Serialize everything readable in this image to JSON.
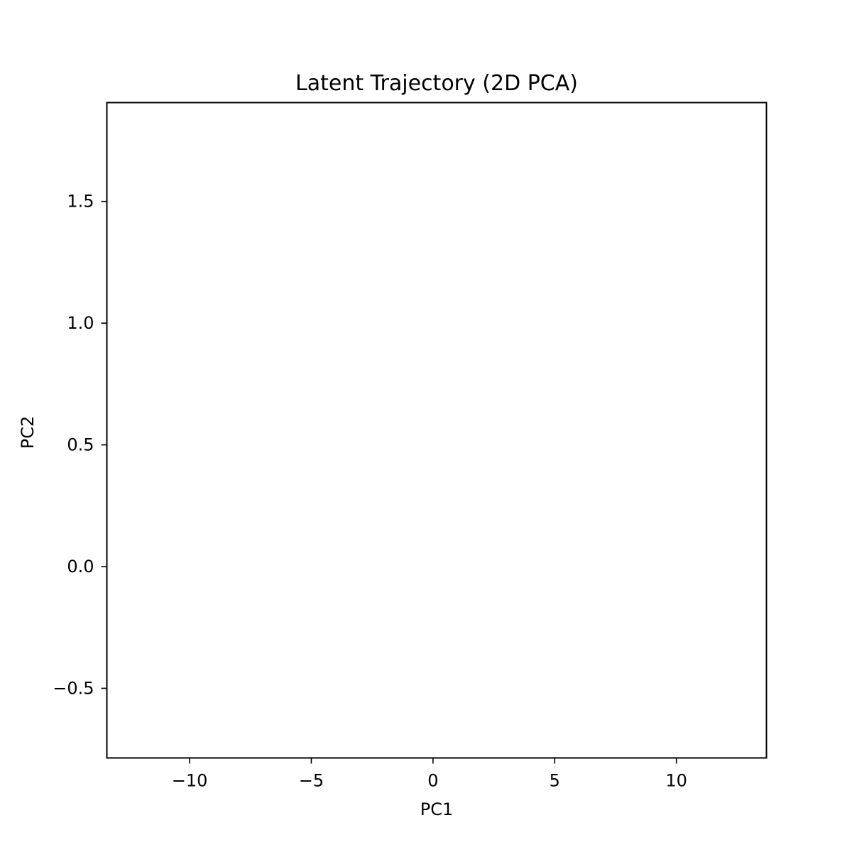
{
  "chart_data": {
    "type": "line",
    "title": "Latent Trajectory (2D PCA)",
    "xlabel": "PC1",
    "ylabel": "PC2",
    "xlim": [
      -13.4,
      13.7
    ],
    "ylim": [
      -0.786,
      1.906
    ],
    "xticks": [
      -10,
      -5,
      0,
      5,
      10
    ],
    "xtick_labels": [
      "−10",
      "−5",
      "0",
      "5",
      "10"
    ],
    "yticks": [
      -0.5,
      0.0,
      0.5,
      1.0,
      1.5
    ],
    "ytick_labels": [
      "−0.5",
      "0.0",
      "0.5",
      "1.0",
      "1.5"
    ],
    "series": [],
    "grid": false,
    "legend": "none"
  }
}
